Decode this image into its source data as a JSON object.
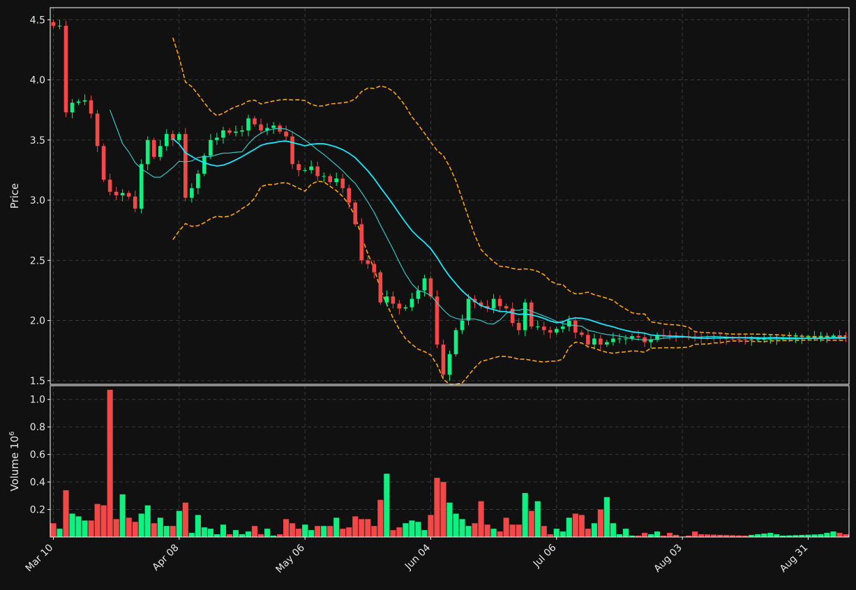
{
  "chart_data": {
    "type": "candlestick",
    "title": "",
    "colors": {
      "background": "#111111",
      "up": "#10f080",
      "down": "#f24848",
      "ma_fast": "#33d4d4",
      "ma_slow": "#18e8ff",
      "bands": "#ffa500",
      "grid": "#3a3a3a",
      "axis": "#ffffff"
    },
    "price_panel": {
      "ylabel": "Price",
      "ylim": [
        1.47,
        4.6
      ],
      "yticks": [
        1.5,
        2.0,
        2.5,
        3.0,
        3.5,
        4.0,
        4.5
      ],
      "ytick_labels": [
        "1.5",
        "2.0",
        "2.5",
        "3.0",
        "3.5",
        "4.0",
        "4.5"
      ]
    },
    "volume_panel": {
      "ylabel": "Volume",
      "yscale_label": "10",
      "yscale_exp": "6",
      "ylim": [
        0,
        1.1
      ],
      "yticks": [
        0.2,
        0.4,
        0.6,
        0.8,
        1.0
      ],
      "ytick_labels": [
        "0.2",
        "0.4",
        "0.6",
        "0.8",
        "1.0"
      ]
    },
    "x_ticks": [
      {
        "label": "Mar 10",
        "index": 0
      },
      {
        "label": "Apr 08",
        "index": 20
      },
      {
        "label": "May 06",
        "index": 40
      },
      {
        "label": "Jun 04",
        "index": 60
      },
      {
        "label": "Jul 06",
        "index": 80
      },
      {
        "label": "Aug 03",
        "index": 100
      },
      {
        "label": "Aug 31",
        "index": 120
      }
    ],
    "n_bars": 127,
    "anchors": {
      "close": [
        [
          0,
          4.45
        ],
        [
          1,
          4.45
        ],
        [
          2,
          3.73
        ],
        [
          3,
          3.81
        ],
        [
          5,
          3.83
        ],
        [
          6,
          3.72
        ],
        [
          7,
          3.45
        ],
        [
          8,
          3.17
        ],
        [
          9,
          3.07
        ],
        [
          10,
          3.04
        ],
        [
          11,
          3.06
        ],
        [
          12,
          3.03
        ],
        [
          13,
          2.93
        ],
        [
          14,
          3.3
        ],
        [
          15,
          3.5
        ],
        [
          16,
          3.36
        ],
        [
          17,
          3.45
        ],
        [
          18,
          3.55
        ],
        [
          19,
          3.5
        ],
        [
          20,
          3.55
        ],
        [
          21,
          3.02
        ],
        [
          22,
          3.1
        ],
        [
          23,
          3.22
        ],
        [
          24,
          3.37
        ],
        [
          25,
          3.5
        ],
        [
          26,
          3.52
        ],
        [
          27,
          3.58
        ],
        [
          28,
          3.56
        ],
        [
          30,
          3.58
        ],
        [
          31,
          3.68
        ],
        [
          33,
          3.58
        ],
        [
          35,
          3.62
        ],
        [
          36,
          3.57
        ],
        [
          37,
          3.53
        ],
        [
          38,
          3.3
        ],
        [
          39,
          3.25
        ],
        [
          40,
          3.25
        ],
        [
          41,
          3.28
        ],
        [
          42,
          3.2
        ],
        [
          43,
          3.2
        ],
        [
          44,
          3.15
        ],
        [
          45,
          3.18
        ],
        [
          46,
          3.1
        ],
        [
          47,
          2.98
        ],
        [
          48,
          2.8
        ],
        [
          49,
          2.5
        ],
        [
          50,
          2.47
        ],
        [
          51,
          2.4
        ],
        [
          52,
          2.15
        ],
        [
          53,
          2.2
        ],
        [
          54,
          2.14
        ],
        [
          55,
          2.1
        ],
        [
          56,
          2.11
        ],
        [
          57,
          2.18
        ],
        [
          58,
          2.25
        ],
        [
          59,
          2.35
        ],
        [
          60,
          2.2
        ],
        [
          61,
          1.8
        ],
        [
          62,
          1.55
        ],
        [
          63,
          1.72
        ],
        [
          64,
          1.92
        ],
        [
          65,
          2.0
        ],
        [
          66,
          2.18
        ],
        [
          67,
          2.15
        ],
        [
          68,
          2.12
        ],
        [
          69,
          2.1
        ],
        [
          70,
          2.18
        ],
        [
          71,
          2.12
        ],
        [
          72,
          2.1
        ],
        [
          73,
          1.98
        ],
        [
          74,
          1.92
        ],
        [
          75,
          2.15
        ],
        [
          76,
          1.95
        ],
        [
          77,
          1.95
        ],
        [
          78,
          1.92
        ],
        [
          79,
          1.9
        ],
        [
          80,
          1.93
        ],
        [
          81,
          1.95
        ],
        [
          82,
          2.0
        ],
        [
          83,
          1.9
        ],
        [
          84,
          1.88
        ],
        [
          85,
          1.8
        ],
        [
          86,
          1.85
        ],
        [
          87,
          1.8
        ],
        [
          88,
          1.82
        ],
        [
          89,
          1.85
        ],
        [
          90,
          1.85
        ],
        [
          91,
          1.85
        ],
        [
          92,
          1.87
        ],
        [
          93,
          1.86
        ],
        [
          94,
          1.82
        ],
        [
          95,
          1.84
        ],
        [
          96,
          1.88
        ],
        [
          100,
          1.87
        ],
        [
          110,
          1.84
        ],
        [
          115,
          1.85
        ],
        [
          120,
          1.86
        ],
        [
          124,
          1.87
        ],
        [
          126,
          1.86
        ]
      ],
      "volume": [
        [
          0,
          0.1
        ],
        [
          1,
          0.06
        ],
        [
          2,
          0.34
        ],
        [
          3,
          0.17
        ],
        [
          4,
          0.15
        ],
        [
          5,
          0.12
        ],
        [
          6,
          0.12
        ],
        [
          7,
          0.24
        ],
        [
          8,
          0.23
        ],
        [
          9,
          1.07
        ],
        [
          10,
          0.13
        ],
        [
          11,
          0.31
        ],
        [
          12,
          0.14
        ],
        [
          13,
          0.11
        ],
        [
          14,
          0.17
        ],
        [
          15,
          0.23
        ],
        [
          16,
          0.1
        ],
        [
          17,
          0.14
        ],
        [
          18,
          0.08
        ],
        [
          19,
          0.08
        ],
        [
          20,
          0.19
        ],
        [
          21,
          0.25
        ],
        [
          22,
          0.03
        ],
        [
          23,
          0.16
        ],
        [
          24,
          0.07
        ],
        [
          25,
          0.06
        ],
        [
          26,
          0.02
        ],
        [
          27,
          0.09
        ],
        [
          28,
          0.02
        ],
        [
          29,
          0.05
        ],
        [
          30,
          0.02
        ],
        [
          31,
          0.04
        ],
        [
          32,
          0.08
        ],
        [
          33,
          0.02
        ],
        [
          34,
          0.06
        ],
        [
          35,
          0.01
        ],
        [
          36,
          0.02
        ],
        [
          37,
          0.13
        ],
        [
          38,
          0.1
        ],
        [
          39,
          0.06
        ],
        [
          40,
          0.09
        ],
        [
          41,
          0.05
        ],
        [
          42,
          0.08
        ],
        [
          43,
          0.08
        ],
        [
          44,
          0.08
        ],
        [
          45,
          0.14
        ],
        [
          46,
          0.06
        ],
        [
          47,
          0.07
        ],
        [
          48,
          0.15
        ],
        [
          49,
          0.13
        ],
        [
          50,
          0.13
        ],
        [
          51,
          0.08
        ],
        [
          52,
          0.27
        ],
        [
          53,
          0.46
        ],
        [
          54,
          0.05
        ],
        [
          55,
          0.07
        ],
        [
          56,
          0.1
        ],
        [
          57,
          0.12
        ],
        [
          58,
          0.11
        ],
        [
          59,
          0.05
        ],
        [
          60,
          0.16
        ],
        [
          61,
          0.43
        ],
        [
          62,
          0.4
        ],
        [
          63,
          0.25
        ],
        [
          64,
          0.17
        ],
        [
          65,
          0.13
        ],
        [
          66,
          0.08
        ],
        [
          67,
          0.1
        ],
        [
          68,
          0.26
        ],
        [
          69,
          0.09
        ],
        [
          70,
          0.06
        ],
        [
          71,
          0.04
        ],
        [
          72,
          0.14
        ],
        [
          73,
          0.09
        ],
        [
          74,
          0.09
        ],
        [
          75,
          0.32
        ],
        [
          76,
          0.19
        ],
        [
          77,
          0.26
        ],
        [
          78,
          0.08
        ],
        [
          79,
          0.02
        ],
        [
          80,
          0.06
        ],
        [
          81,
          0.04
        ],
        [
          82,
          0.14
        ],
        [
          83,
          0.17
        ],
        [
          84,
          0.16
        ],
        [
          85,
          0.06
        ],
        [
          86,
          0.1
        ],
        [
          87,
          0.2
        ],
        [
          88,
          0.29
        ],
        [
          89,
          0.1
        ],
        [
          90,
          0.02
        ],
        [
          91,
          0.06
        ],
        [
          92,
          0.01
        ],
        [
          93,
          0.01
        ],
        [
          94,
          0.03
        ],
        [
          95,
          0.02
        ],
        [
          96,
          0.04
        ],
        [
          97,
          0.01
        ],
        [
          98,
          0.03
        ],
        [
          100,
          0.0
        ],
        [
          101,
          0.01
        ],
        [
          102,
          0.04
        ],
        [
          103,
          0.02
        ],
        [
          110,
          0.01
        ],
        [
          114,
          0.03
        ],
        [
          116,
          0.01
        ],
        [
          122,
          0.02
        ],
        [
          124,
          0.04
        ],
        [
          126,
          0.02
        ]
      ]
    }
  }
}
